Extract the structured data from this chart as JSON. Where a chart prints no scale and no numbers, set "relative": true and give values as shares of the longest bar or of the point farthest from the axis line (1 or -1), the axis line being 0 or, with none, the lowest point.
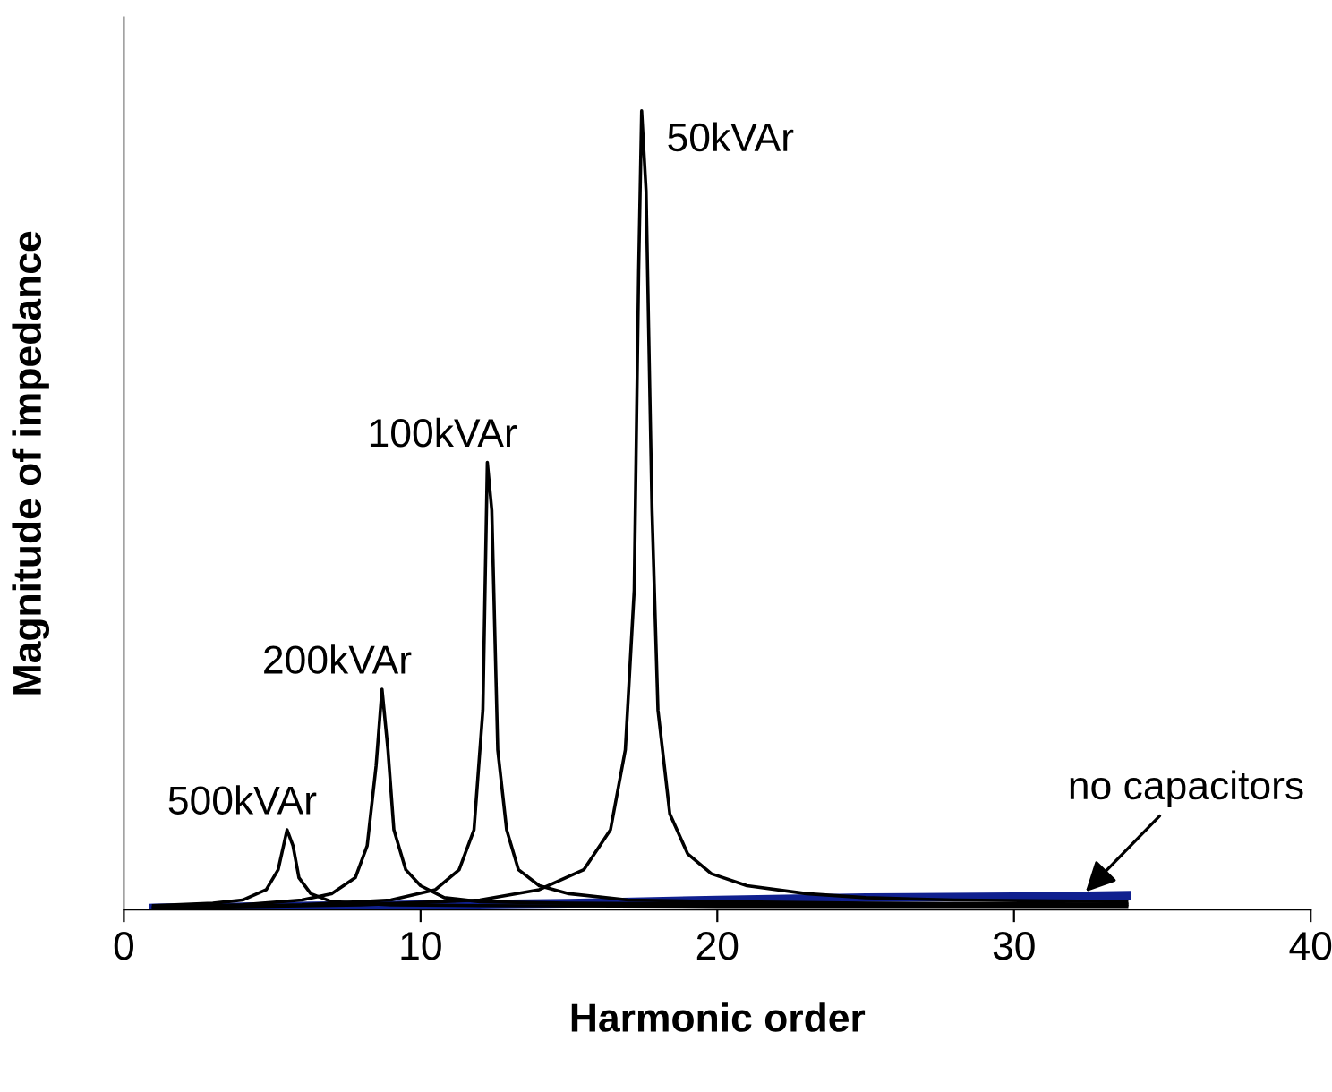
{
  "chart_data": {
    "type": "line",
    "relative": true,
    "xlabel": "Harmonic order",
    "ylabel": "Magnitude of impedance",
    "xlim": [
      0,
      40
    ],
    "xticks": [
      0,
      10,
      20,
      30,
      40
    ],
    "tick_labels": "x",
    "grid": false,
    "legend": false,
    "marker": "none",
    "line_style": "solid",
    "series": [
      {
        "name": "500kVAr",
        "color": "#000000",
        "x": [
          1,
          3,
          4,
          4.8,
          5.2,
          5.5,
          5.7,
          5.9,
          6.3,
          7,
          9,
          12,
          20,
          33.8
        ],
        "values": [
          0.005,
          0.008,
          0.012,
          0.025,
          0.05,
          0.1,
          0.08,
          0.04,
          0.02,
          0.01,
          0.006,
          0.005,
          0.004,
          0.004
        ]
      },
      {
        "name": "200kVAr",
        "color": "#000000",
        "x": [
          1,
          4,
          6,
          7,
          7.8,
          8.2,
          8.5,
          8.7,
          8.9,
          9.1,
          9.5,
          10,
          10.8,
          12,
          15,
          20,
          33.8
        ],
        "values": [
          0.003,
          0.006,
          0.012,
          0.02,
          0.04,
          0.08,
          0.18,
          0.276,
          0.2,
          0.1,
          0.05,
          0.03,
          0.015,
          0.01,
          0.008,
          0.007,
          0.006
        ]
      },
      {
        "name": "100kVAr",
        "color": "#000000",
        "x": [
          1,
          6,
          9,
          10.5,
          11.3,
          11.8,
          12.1,
          12.25,
          12.4,
          12.6,
          12.9,
          13.3,
          14,
          15,
          17,
          20,
          25,
          33.8
        ],
        "values": [
          0.002,
          0.006,
          0.012,
          0.025,
          0.05,
          0.1,
          0.25,
          0.56,
          0.5,
          0.2,
          0.1,
          0.05,
          0.03,
          0.02,
          0.012,
          0.01,
          0.008,
          0.007
        ]
      },
      {
        "name": "50kVAr",
        "color": "#000000",
        "x": [
          1,
          8,
          12,
          14,
          15.5,
          16.4,
          16.9,
          17.2,
          17.35,
          17.45,
          17.6,
          17.8,
          18.0,
          18.4,
          19,
          19.8,
          21,
          23,
          25,
          28,
          33.8
        ],
        "values": [
          0.002,
          0.006,
          0.012,
          0.025,
          0.05,
          0.1,
          0.2,
          0.4,
          0.8,
          1.0,
          0.9,
          0.5,
          0.25,
          0.12,
          0.07,
          0.045,
          0.03,
          0.02,
          0.015,
          0.012,
          0.01
        ]
      },
      {
        "name": "no capacitors",
        "color": "#10208f",
        "x": [
          1,
          5,
          10,
          15,
          17.5,
          20,
          25,
          30,
          32,
          33.8
        ],
        "values": [
          0.002,
          0.004,
          0.006,
          0.008,
          0.01,
          0.012,
          0.015,
          0.016,
          0.017,
          0.018
        ]
      }
    ]
  }
}
